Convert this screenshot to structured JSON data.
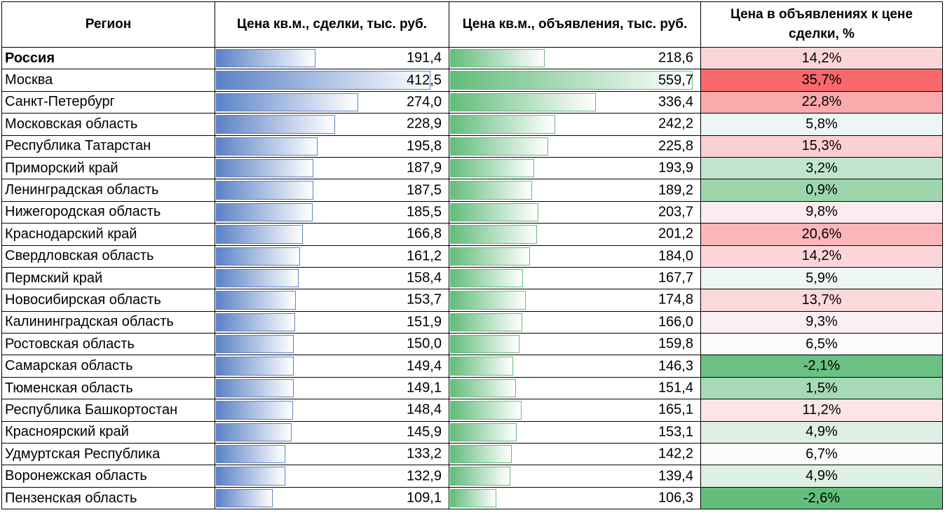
{
  "chart_data": {
    "type": "table",
    "headers": [
      "Регион",
      "Цена кв.м., сделки, тыс. руб.",
      "Цена кв.м., объявления, тыс. руб.",
      "Цена в объявлениях к цене сделки, %"
    ],
    "bar_max": {
      "deals": 412.5,
      "listings": 559.7
    },
    "colors": {
      "deals_bar": "#5b82c6",
      "listings_bar": "#62bc7b",
      "positive_scale": "#f8696b",
      "negative_scale": "#63be7b"
    },
    "rows": [
      {
        "region": "Россия",
        "bold": true,
        "deals": 191.4,
        "deals_text": "191,4",
        "listings": 218.6,
        "listings_text": "218,6",
        "ratio": 14.2,
        "ratio_text": "14,2%"
      },
      {
        "region": "Москва",
        "deals": 412.5,
        "deals_text": "412,5",
        "listings": 559.7,
        "listings_text": "559,7",
        "ratio": 35.7,
        "ratio_text": "35,7%"
      },
      {
        "region": "Санкт-Петербург",
        "deals": 274.0,
        "deals_text": "274,0",
        "listings": 336.4,
        "listings_text": "336,4",
        "ratio": 22.8,
        "ratio_text": "22,8%"
      },
      {
        "region": "Московская область",
        "deals": 228.9,
        "deals_text": "228,9",
        "listings": 242.2,
        "listings_text": "242,2",
        "ratio": 5.8,
        "ratio_text": "5,8%"
      },
      {
        "region": "Республика Татарстан",
        "deals": 195.8,
        "deals_text": "195,8",
        "listings": 225.8,
        "listings_text": "225,8",
        "ratio": 15.3,
        "ratio_text": "15,3%"
      },
      {
        "region": "Приморский край",
        "deals": 187.9,
        "deals_text": "187,9",
        "listings": 193.9,
        "listings_text": "193,9",
        "ratio": 3.2,
        "ratio_text": "3,2%"
      },
      {
        "region": "Ленинградская область",
        "deals": 187.5,
        "deals_text": "187,5",
        "listings": 189.2,
        "listings_text": "189,2",
        "ratio": 0.9,
        "ratio_text": "0,9%"
      },
      {
        "region": "Нижегородская область",
        "deals": 185.5,
        "deals_text": "185,5",
        "listings": 203.7,
        "listings_text": "203,7",
        "ratio": 9.8,
        "ratio_text": "9,8%"
      },
      {
        "region": "Краснодарский край",
        "deals": 166.8,
        "deals_text": "166,8",
        "listings": 201.2,
        "listings_text": "201,2",
        "ratio": 20.6,
        "ratio_text": "20,6%"
      },
      {
        "region": "Свердловская область",
        "deals": 161.2,
        "deals_text": "161,2",
        "listings": 184.0,
        "listings_text": "184,0",
        "ratio": 14.2,
        "ratio_text": "14,2%"
      },
      {
        "region": "Пермский край",
        "deals": 158.4,
        "deals_text": "158,4",
        "listings": 167.7,
        "listings_text": "167,7",
        "ratio": 5.9,
        "ratio_text": "5,9%"
      },
      {
        "region": "Новосибирская область",
        "deals": 153.7,
        "deals_text": "153,7",
        "listings": 174.8,
        "listings_text": "174,8",
        "ratio": 13.7,
        "ratio_text": "13,7%"
      },
      {
        "region": "Калининградская область",
        "deals": 151.9,
        "deals_text": "151,9",
        "listings": 166.0,
        "listings_text": "166,0",
        "ratio": 9.3,
        "ratio_text": "9,3%"
      },
      {
        "region": "Ростовская область",
        "deals": 150.0,
        "deals_text": "150,0",
        "listings": 159.8,
        "listings_text": "159,8",
        "ratio": 6.5,
        "ratio_text": "6,5%"
      },
      {
        "region": "Самарская область",
        "deals": 149.4,
        "deals_text": "149,4",
        "listings": 146.3,
        "listings_text": "146,3",
        "ratio": -2.1,
        "ratio_text": "-2,1%"
      },
      {
        "region": "Тюменская область",
        "deals": 149.1,
        "deals_text": "149,1",
        "listings": 151.4,
        "listings_text": "151,4",
        "ratio": 1.5,
        "ratio_text": "1,5%"
      },
      {
        "region": "Республика Башкортостан",
        "deals": 148.4,
        "deals_text": "148,4",
        "listings": 165.1,
        "listings_text": "165,1",
        "ratio": 11.2,
        "ratio_text": "11,2%"
      },
      {
        "region": "Красноярский край",
        "deals": 145.9,
        "deals_text": "145,9",
        "listings": 153.1,
        "listings_text": "153,1",
        "ratio": 4.9,
        "ratio_text": "4,9%"
      },
      {
        "region": "Удмуртская Республика",
        "deals": 133.2,
        "deals_text": "133,2",
        "listings": 142.2,
        "listings_text": "142,2",
        "ratio": 6.7,
        "ratio_text": "6,7%"
      },
      {
        "region": "Воронежская область",
        "deals": 132.9,
        "deals_text": "132,9",
        "listings": 139.4,
        "listings_text": "139,4",
        "ratio": 4.9,
        "ratio_text": "4,9%"
      },
      {
        "region": "Пензенская область",
        "deals": 109.1,
        "deals_text": "109,1",
        "listings": 106.3,
        "listings_text": "106,3",
        "ratio": -2.6,
        "ratio_text": "-2,6%"
      }
    ]
  }
}
